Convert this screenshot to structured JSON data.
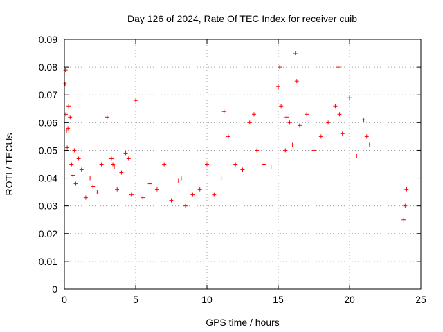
{
  "chart_data": {
    "type": "scatter",
    "title": "Day 126 of 2024, Rate Of TEC Index for receiver cuib",
    "xlabel": "GPS time / hours",
    "ylabel": "ROTI / TECUs",
    "xlim": [
      0,
      25
    ],
    "ylim": [
      0,
      0.09
    ],
    "xticks": [
      0,
      5,
      10,
      15,
      20,
      25
    ],
    "yticks": [
      0,
      0.01,
      0.02,
      0.03,
      0.04,
      0.05,
      0.06,
      0.07,
      0.08,
      0.09
    ],
    "xtick_labels": [
      "0",
      "5",
      "10",
      "15",
      "20",
      "25"
    ],
    "ytick_labels": [
      "0",
      "0.01",
      "0.02",
      "0.03",
      "0.04",
      "0.05",
      "0.06",
      "0.07",
      "0.08",
      "0.09"
    ],
    "grid": true,
    "marker": "+",
    "color": "#ff0000",
    "series": [
      {
        "x": [
          0.05,
          0.08,
          0.1,
          0.15,
          0.2,
          0.25,
          0.3,
          0.4,
          0.5,
          0.6,
          0.7,
          0.8,
          1.0,
          1.2,
          1.5,
          1.8,
          2.0,
          2.3,
          2.6,
          3.0,
          3.3,
          3.4,
          3.5,
          3.7,
          4.0,
          4.3,
          4.5,
          4.7,
          5.0,
          5.5,
          6.0,
          6.5,
          7.0,
          7.5,
          8.0,
          8.2,
          8.5,
          9.0,
          9.5,
          10.0,
          10.5,
          11.0,
          11.2,
          11.5,
          12.0,
          12.5,
          13.0,
          13.3,
          13.5,
          14.0,
          14.5,
          15.0,
          15.1,
          15.2,
          15.5,
          15.6,
          15.8,
          16.0,
          16.2,
          16.3,
          16.5,
          17.0,
          17.5,
          18.0,
          18.5,
          19.0,
          19.2,
          19.3,
          19.5,
          20.0,
          20.5,
          21.0,
          21.2,
          21.4,
          23.8,
          23.9,
          24.0
        ],
        "y": [
          0.074,
          0.079,
          0.063,
          0.057,
          0.051,
          0.058,
          0.066,
          0.062,
          0.045,
          0.041,
          0.05,
          0.038,
          0.047,
          0.043,
          0.033,
          0.04,
          0.037,
          0.035,
          0.045,
          0.062,
          0.047,
          0.045,
          0.044,
          0.036,
          0.042,
          0.049,
          0.047,
          0.034,
          0.068,
          0.033,
          0.038,
          0.036,
          0.045,
          0.032,
          0.039,
          0.04,
          0.03,
          0.034,
          0.036,
          0.045,
          0.034,
          0.04,
          0.064,
          0.055,
          0.045,
          0.043,
          0.06,
          0.063,
          0.05,
          0.045,
          0.044,
          0.073,
          0.08,
          0.066,
          0.05,
          0.062,
          0.06,
          0.052,
          0.085,
          0.075,
          0.059,
          0.063,
          0.05,
          0.055,
          0.06,
          0.066,
          0.08,
          0.063,
          0.056,
          0.069,
          0.048,
          0.061,
          0.055,
          0.052,
          0.025,
          0.03,
          0.036
        ]
      }
    ]
  }
}
